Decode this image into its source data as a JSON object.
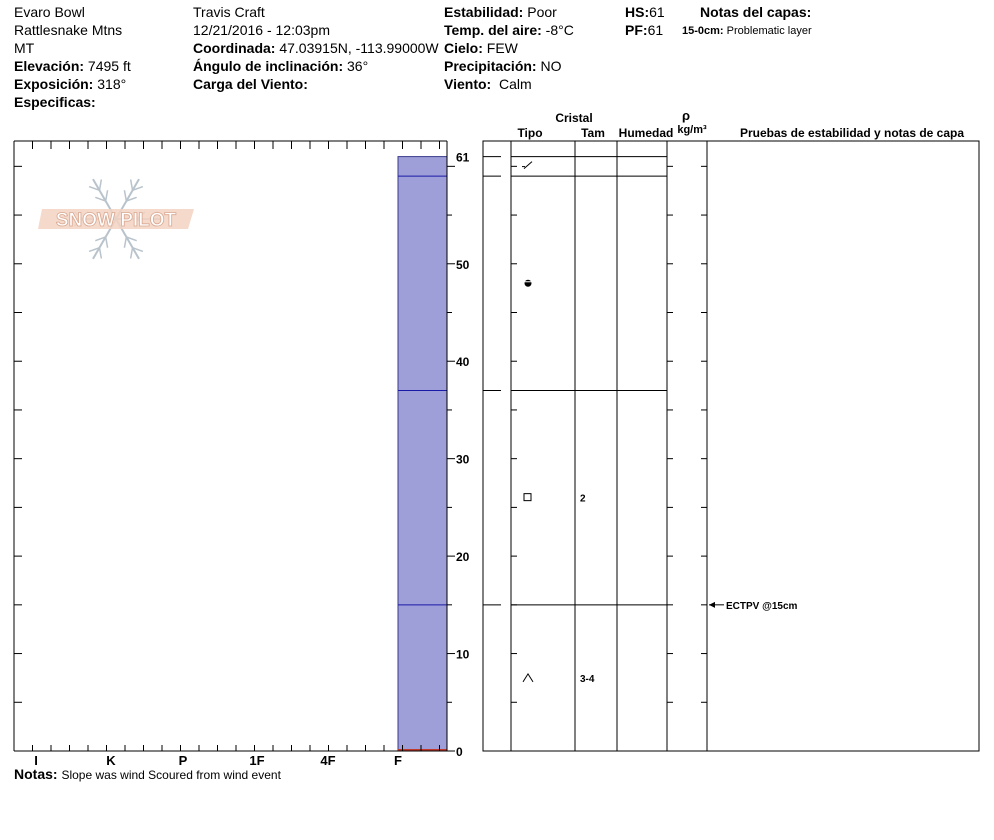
{
  "header": {
    "location": "Evaro Bowl",
    "range": "Rattlesnake Mtns",
    "state": "MT",
    "elevation_label": "Elevación:",
    "elevation": "7495 ft",
    "aspect_label": "Exposición:",
    "aspect": "318°",
    "specifics_label": "Especificas:",
    "observer": "Travis  Craft",
    "datetime": "12/21/2016 - 12:03pm",
    "coord_label": "Coordinada:",
    "coord": "47.03915N, -113.99000W",
    "slope_label": "Ángulo de inclinación:",
    "slope": "36°",
    "wind_load_label": "Carga del Viento:",
    "stability_label": "Estabilidad:",
    "stability": "Poor",
    "air_temp_label": "Temp. del aire:",
    "air_temp": "-8°C",
    "sky_label": "Cielo:",
    "sky": "FEW",
    "precip_label": "Precipitación:",
    "precip": "NO",
    "wind_label": "Viento:",
    "wind": "Calm",
    "hs_label": "HS:",
    "hs": "61",
    "pf_label": "PF:",
    "pf": "61",
    "layer_notes_label": "Notas del capas:",
    "layer_note_depth": "15-0cm:",
    "layer_note_text": "Problematic layer"
  },
  "notes": {
    "label": "Notas:",
    "text": "Slope was wind Scoured from wind event"
  },
  "chart_data": {
    "type": "table",
    "title": "",
    "hardness_axis": [
      "I",
      "K",
      "P",
      "1F",
      "4F",
      "F"
    ],
    "depth_axis": {
      "range": [
        0,
        61
      ],
      "ticks": [
        0,
        10,
        20,
        30,
        40,
        50,
        61
      ]
    },
    "hardness_profile": [
      {
        "top": 61,
        "bottom": 0,
        "hardness": "F"
      }
    ],
    "layer_boundaries": [
      61,
      59,
      37,
      15,
      0
    ],
    "columns": {
      "cristal": "Cristal",
      "tipo": "Tipo",
      "tam": "Tam",
      "humedad": "Humedad",
      "rho": "ρ",
      "rho_unit": "kg/m³",
      "tests": "Pruebas de estabilidad y notas de capa"
    },
    "layers": [
      {
        "top": 61,
        "bottom": 59,
        "grain": "decomposing",
        "size": ""
      },
      {
        "top": 59,
        "bottom": 37,
        "grain": "melt-freeze",
        "size": ""
      },
      {
        "top": 37,
        "bottom": 15,
        "grain": "faceted",
        "size": "2"
      },
      {
        "top": 15,
        "bottom": 0,
        "grain": "depth-hoar",
        "size": "3-4"
      }
    ],
    "stability_tests": [
      {
        "depth": 15,
        "text": "ECTPV @15cm"
      }
    ],
    "watermark": "SNOW PILOT",
    "colors": {
      "profile_fill": "#9e9ed8",
      "profile_line": "#1a1aa8",
      "ground": "#c0392b"
    }
  }
}
